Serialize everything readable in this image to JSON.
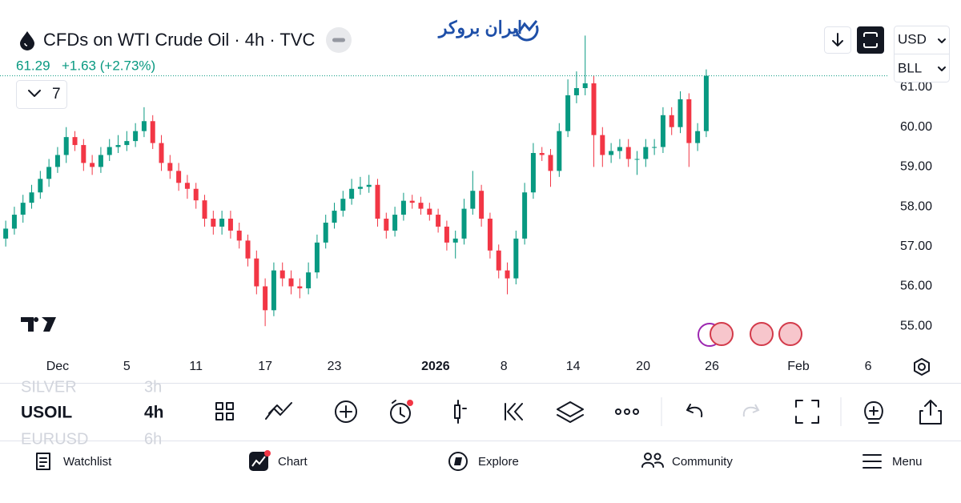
{
  "header": {
    "title": "CFDs on WTI Crude Oil · 4h · TVC",
    "price": "61.29",
    "change": "+1.63 (+2.73%)",
    "legend_count": "7",
    "currency": "USD",
    "unit": "BLL",
    "watermark": "ایران بروکر"
  },
  "chart_data": {
    "type": "candlestick",
    "up_color": "#089981",
    "down_color": "#f23645",
    "grid": false,
    "price_line": true,
    "x": [
      -3,
      -2.5,
      -2,
      -1.5,
      -1,
      -0.5,
      0,
      0.5,
      1,
      1.5,
      2,
      2.5,
      3,
      3.5,
      4,
      4.5,
      5,
      5.5,
      6,
      6.5,
      7,
      7.5,
      8,
      8.5,
      9,
      9.5,
      10,
      10.5,
      11,
      11.5,
      12,
      12.5,
      13,
      13.5,
      14,
      14.5,
      15,
      15.5,
      16,
      16.5,
      17,
      17.5,
      18,
      18.5,
      19,
      19.5,
      20,
      20.5,
      21,
      21.5,
      22,
      22.5,
      23,
      23.5,
      24,
      24.5,
      25,
      25.5,
      26,
      26.5,
      27,
      27.5,
      28,
      28.5,
      29,
      29.5,
      30,
      30.5,
      31,
      31.5,
      32,
      32.5,
      33,
      33.5,
      34,
      34.5,
      35,
      35.5,
      36,
      36.5,
      37,
      37.5
    ],
    "open": [
      57.2,
      57.45,
      57.8,
      58.1,
      58.36,
      58.7,
      59.0,
      59.3,
      59.75,
      59.55,
      59.1,
      59.0,
      59.3,
      59.5,
      59.55,
      59.65,
      59.9,
      60.15,
      59.6,
      59.1,
      58.9,
      58.6,
      58.45,
      58.16,
      57.7,
      57.5,
      57.7,
      57.4,
      57.15,
      56.7,
      56.0,
      55.4,
      56.4,
      56.2,
      56.0,
      55.95,
      56.35,
      57.1,
      57.6,
      57.9,
      58.2,
      58.45,
      58.5,
      58.55,
      57.7,
      57.4,
      57.8,
      58.15,
      58.1,
      57.95,
      57.8,
      57.5,
      57.1,
      57.2,
      57.95,
      58.4,
      57.7,
      56.9,
      56.4,
      56.2,
      57.2,
      58.36,
      59.35,
      59.3,
      58.9,
      59.9,
      60.8,
      60.98,
      61.1,
      59.8,
      59.3,
      59.4,
      59.5,
      59.2,
      59.2,
      59.5,
      59.5,
      60.3,
      60.0,
      60.7,
      59.6,
      59.9
    ],
    "high": [
      57.65,
      58.0,
      58.3,
      58.55,
      58.9,
      59.2,
      59.5,
      60.0,
      59.9,
      59.7,
      59.3,
      59.5,
      59.7,
      59.8,
      59.9,
      60.1,
      60.5,
      60.3,
      59.8,
      59.3,
      59.1,
      58.8,
      58.6,
      58.3,
      57.9,
      57.9,
      57.9,
      57.6,
      57.3,
      56.9,
      56.2,
      56.6,
      56.6,
      56.4,
      56.2,
      56.6,
      57.3,
      57.8,
      58.1,
      58.4,
      58.7,
      58.75,
      58.8,
      58.7,
      57.85,
      58.0,
      58.35,
      58.3,
      58.25,
      58.1,
      57.95,
      57.65,
      57.4,
      58.2,
      58.9,
      58.55,
      57.85,
      57.05,
      56.6,
      57.4,
      58.6,
      59.6,
      59.5,
      59.45,
      60.1,
      61.2,
      61.4,
      62.3,
      61.3,
      60.0,
      59.6,
      59.7,
      59.7,
      59.4,
      59.7,
      59.7,
      60.5,
      60.5,
      60.9,
      60.85,
      60.1,
      61.45
    ],
    "low": [
      57.0,
      57.3,
      57.6,
      57.95,
      58.2,
      58.5,
      58.85,
      59.1,
      59.4,
      58.9,
      58.8,
      58.85,
      59.15,
      59.35,
      59.4,
      59.5,
      59.75,
      59.45,
      58.9,
      58.7,
      58.4,
      58.2,
      57.95,
      57.5,
      57.3,
      57.3,
      57.2,
      56.95,
      56.5,
      55.8,
      55.0,
      55.25,
      56.0,
      55.8,
      55.7,
      55.8,
      56.2,
      56.95,
      57.45,
      57.75,
      58.05,
      58.3,
      58.35,
      57.5,
      57.2,
      57.25,
      57.65,
      57.95,
      57.8,
      57.65,
      57.35,
      56.9,
      56.7,
      57.05,
      57.8,
      57.5,
      56.7,
      56.2,
      55.8,
      56.05,
      57.05,
      58.2,
      59.15,
      58.5,
      58.75,
      59.75,
      60.6,
      60.8,
      59.0,
      59.0,
      59.1,
      59.2,
      59.0,
      58.8,
      59.0,
      59.3,
      59.35,
      59.8,
      59.85,
      59.0,
      59.4,
      59.75
    ],
    "close": [
      57.45,
      57.8,
      58.1,
      58.36,
      58.7,
      59.0,
      59.3,
      59.75,
      59.55,
      59.1,
      59.0,
      59.3,
      59.5,
      59.55,
      59.65,
      59.9,
      60.15,
      59.6,
      59.1,
      58.9,
      58.6,
      58.45,
      58.16,
      57.7,
      57.5,
      57.7,
      57.4,
      57.15,
      56.7,
      56.0,
      55.4,
      56.4,
      56.2,
      56.0,
      55.95,
      56.35,
      57.1,
      57.6,
      57.9,
      58.2,
      58.45,
      58.5,
      58.55,
      57.7,
      57.4,
      57.8,
      58.15,
      58.1,
      57.95,
      57.8,
      57.5,
      57.1,
      57.2,
      57.95,
      58.4,
      57.7,
      56.9,
      56.4,
      56.2,
      57.2,
      58.36,
      59.35,
      59.3,
      58.9,
      59.9,
      60.8,
      60.98,
      61.1,
      59.8,
      59.3,
      59.4,
      59.5,
      59.2,
      59.2,
      59.5,
      59.5,
      60.3,
      60.0,
      60.7,
      59.6,
      59.9,
      61.29
    ],
    "xlim": [
      -3.33,
      48.06
    ],
    "xticks": [
      {
        "value": 0,
        "label": "Dec"
      },
      {
        "value": 4,
        "label": "5"
      },
      {
        "value": 8,
        "label": "11"
      },
      {
        "value": 12,
        "label": "17"
      },
      {
        "value": 16,
        "label": "23"
      },
      {
        "value": 21.85,
        "label": "2026"
      },
      {
        "value": 25.8,
        "label": "8"
      },
      {
        "value": 29.8,
        "label": "14"
      },
      {
        "value": 33.85,
        "label": "20"
      },
      {
        "value": 37.83,
        "label": "26"
      },
      {
        "value": 42.83,
        "label": "Feb"
      },
      {
        "value": 46.86,
        "label": "6"
      }
    ],
    "ylim": [
      54.34,
      62.59
    ],
    "yticks": [
      {
        "value": 55,
        "label": "55.00"
      },
      {
        "value": 56,
        "label": "56.00"
      },
      {
        "value": 57,
        "label": "57.00"
      },
      {
        "value": 58,
        "label": "58.00"
      },
      {
        "value": 59,
        "label": "59.00"
      },
      {
        "value": 60,
        "label": "60.00"
      },
      {
        "value": 61,
        "label": "61.00"
      }
    ]
  },
  "symbols": [
    {
      "name": "SILVER",
      "interval": "3h"
    },
    {
      "name": "USOIL",
      "interval": "4h"
    },
    {
      "name": "EURUSD",
      "interval": "6h"
    }
  ],
  "nav": [
    "Watchlist",
    "Chart",
    "Explore",
    "Community",
    "Menu"
  ]
}
